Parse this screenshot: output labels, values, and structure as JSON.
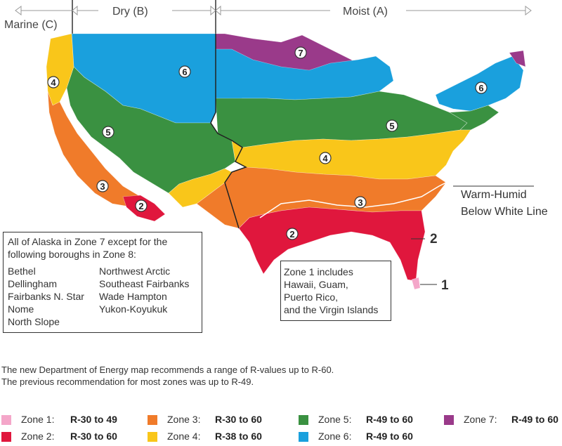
{
  "header": {
    "marine": "Marine (C)",
    "dry": "Dry (B)",
    "moist": "Moist (A)"
  },
  "zone_labels": [
    "7",
    "6",
    "6",
    "4",
    "5",
    "5",
    "4",
    "3",
    "3",
    "2",
    "2"
  ],
  "warm_humid": {
    "line1": "Warm-Humid",
    "line2": "Below White Line"
  },
  "callouts": {
    "zone2": "2",
    "zone1": "1"
  },
  "alaska_box": {
    "intro": "All of Alaska in Zone 7 except for the following boroughs in Zone 8:",
    "col1": [
      "Bethel",
      "Dellingham",
      "Fairbanks N. Star",
      "Nome",
      "North Slope"
    ],
    "col2": [
      "Northwest Arctic",
      "Southeast Fairbanks",
      "Wade Hampton",
      "Yukon-Koyukuk"
    ]
  },
  "zone1_box": {
    "lines": [
      "Zone 1 includes",
      "Hawaii, Guam,",
      "Puerto Rico,",
      "and the Virgin Islands"
    ]
  },
  "note": {
    "line1": "The new Department of Energy map recommends a range of R-values up to R-60.",
    "line2": "The previous recommendation for most zones was up to R-49."
  },
  "legend": [
    {
      "label": "Zone 1:",
      "value": "R-30 to 49",
      "color": "#f4a6c9"
    },
    {
      "label": "Zone 2:",
      "value": "R-30 to 60",
      "color": "#e0173d"
    },
    {
      "label": "Zone 3:",
      "value": "R-30 to 60",
      "color": "#f07b2a"
    },
    {
      "label": "Zone 4:",
      "value": "R-38 to 60",
      "color": "#f9c61a"
    },
    {
      "label": "Zone 5:",
      "value": "R-49 to 60",
      "color": "#3a9141"
    },
    {
      "label": "Zone 6:",
      "value": "R-49 to 60",
      "color": "#1aa0dd"
    },
    {
      "label": "Zone 7:",
      "value": "R-49 to 60",
      "color": "#9a3a8a"
    }
  ]
}
